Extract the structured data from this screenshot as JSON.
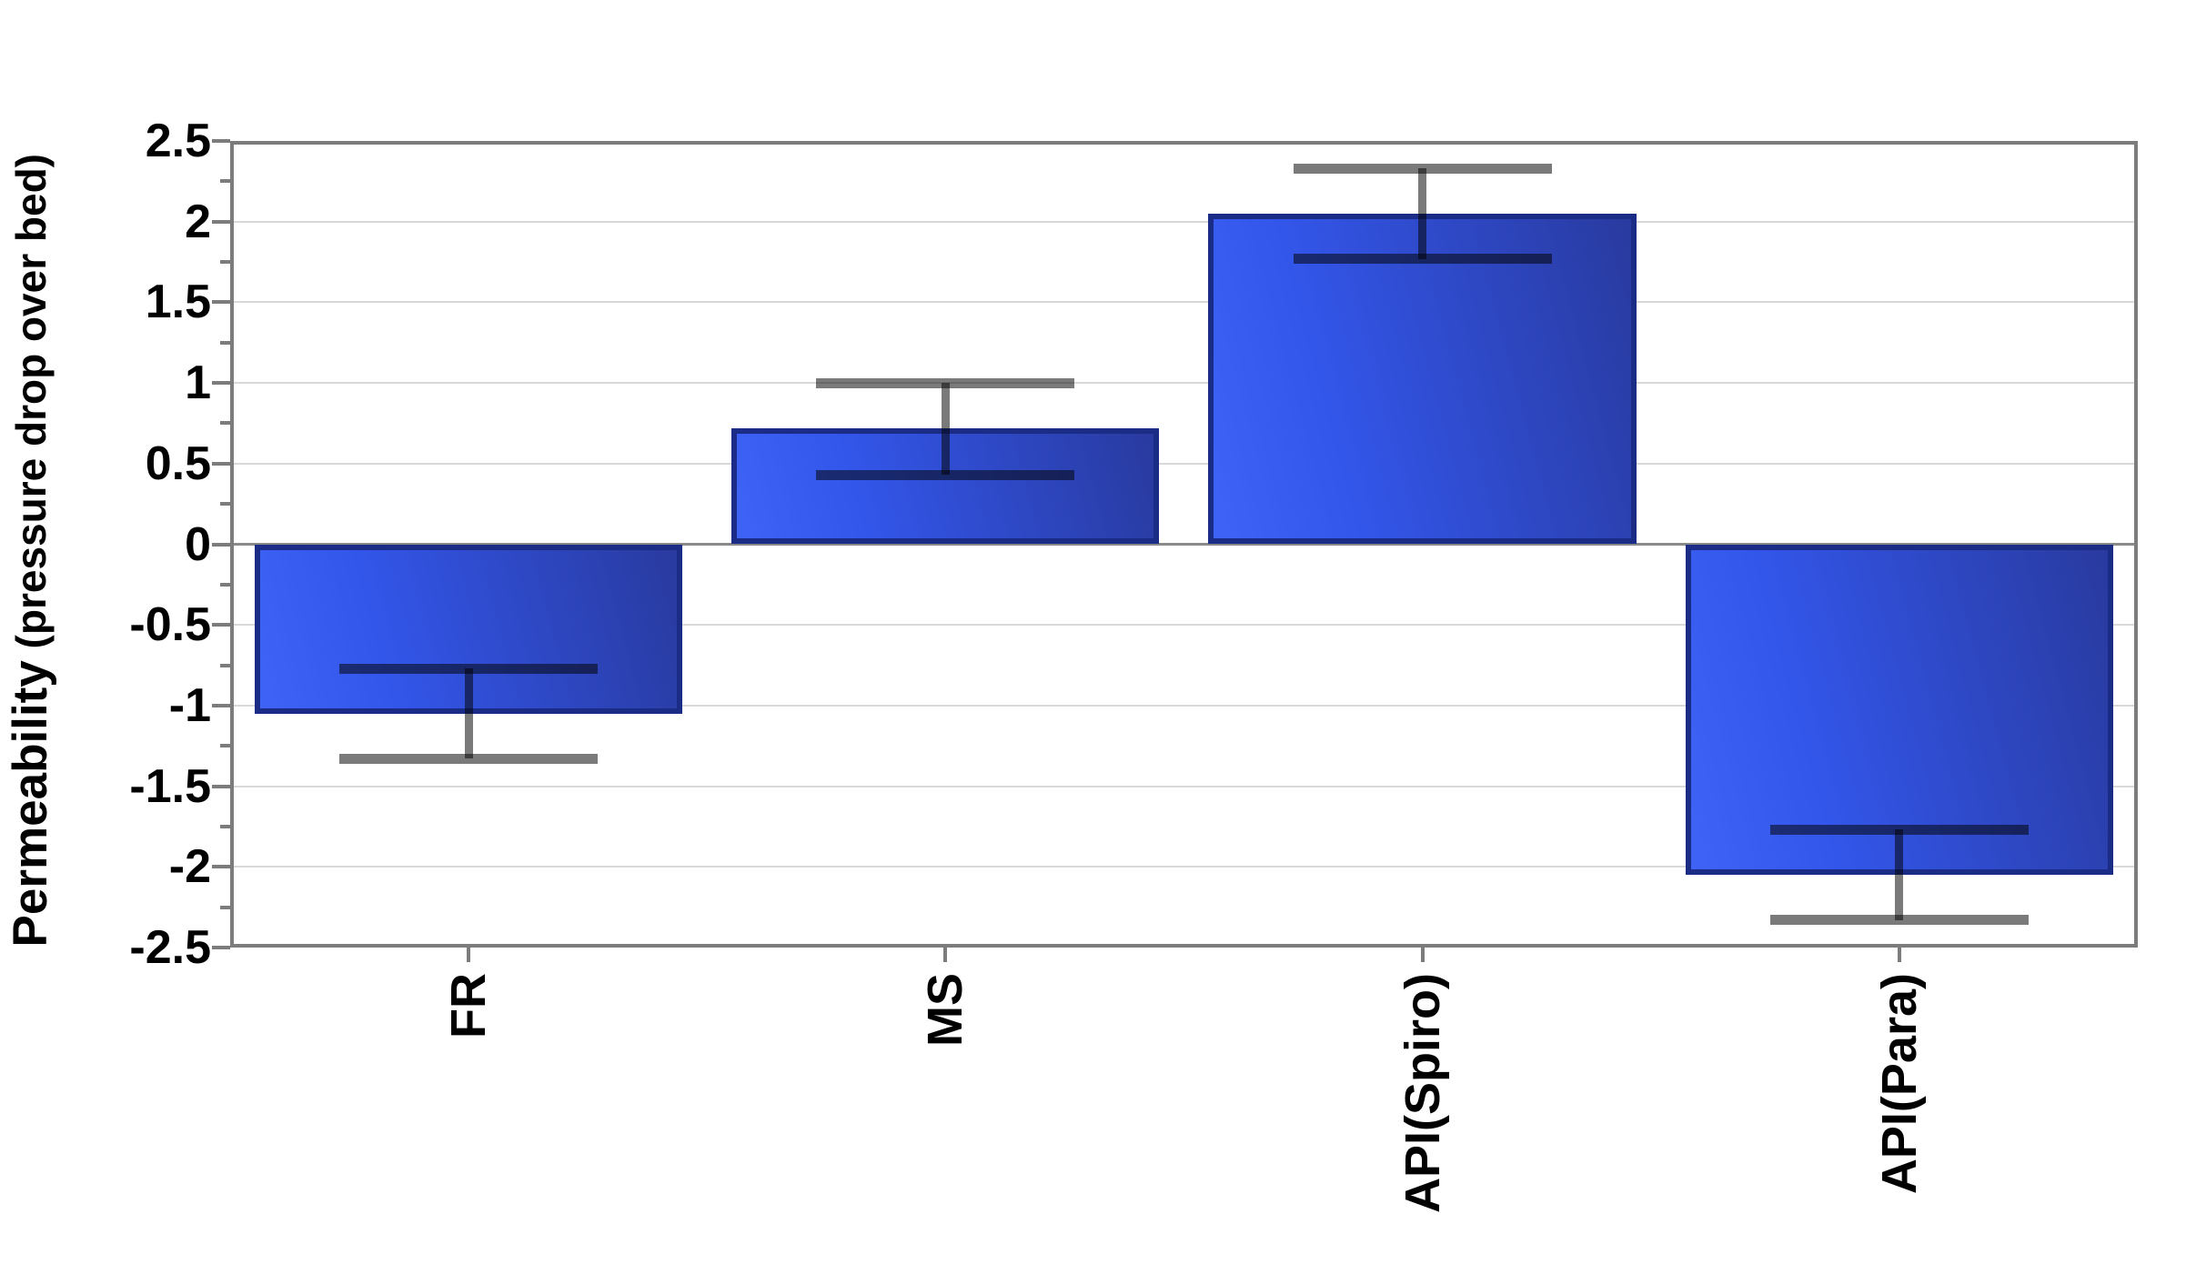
{
  "chart_data": {
    "type": "bar",
    "title": "",
    "categories": [
      "FR",
      "MS",
      "API(Spiro)",
      "API(Para)"
    ],
    "values": [
      -1.05,
      0.72,
      2.05,
      -2.05
    ],
    "error_upper": [
      -0.77,
      1.0,
      2.33,
      -1.77
    ],
    "error_lower": [
      -1.33,
      0.43,
      1.77,
      -2.33
    ],
    "ylabel": "Permeability (pressure drop over bed)",
    "ylabel_main": "Permeability",
    "ylabel_sub": " (pressure drop over bed)",
    "xlabel": "",
    "ylim": [
      -2.5,
      2.5
    ],
    "yticks": [
      2.5,
      2,
      1.5,
      1,
      0.5,
      0,
      -0.5,
      -1,
      -1.5,
      -2,
      -2.5
    ],
    "ytick_labels": [
      "2.5",
      "2",
      "1.5",
      "1",
      "0.5",
      "0",
      "-0.5",
      "-1",
      "-1.5",
      "-2",
      "-2.5"
    ],
    "minor_tick_step": 0.25,
    "grid": true,
    "legend": false,
    "colors": {
      "bar_fill_light": "#3e63f6",
      "bar_fill_dark": "#293a9f",
      "bar_border": "#1b2c87",
      "error_bar": "#7a7a7a",
      "error_bar_over_bar": "#1c2a6e",
      "frame": "#7c7c7c",
      "gridline": "#d9d9d9",
      "zero_line": "#8a8a8a",
      "text": "#000000",
      "background": "#ffffff"
    }
  }
}
